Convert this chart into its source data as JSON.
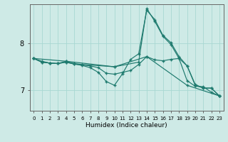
{
  "xlabel": "Humidex (Indice chaleur)",
  "bg_color": "#ceeae6",
  "line_color": "#1e7a6e",
  "grid_color": "#a8d8d2",
  "xlim": [
    -0.5,
    23.5
  ],
  "ylim": [
    6.55,
    8.85
  ],
  "xticks": [
    0,
    1,
    2,
    3,
    4,
    5,
    6,
    7,
    8,
    9,
    10,
    11,
    12,
    13,
    14,
    15,
    16,
    17,
    18,
    19,
    20,
    21,
    22,
    23
  ],
  "yticks": [
    7,
    8
  ],
  "lines": [
    {
      "x": [
        0,
        1,
        2,
        3,
        4,
        5,
        6,
        7,
        8,
        9,
        10,
        11,
        12,
        13,
        14,
        15,
        16,
        17,
        18,
        19,
        20,
        21,
        22,
        23
      ],
      "y": [
        7.68,
        7.6,
        7.58,
        7.57,
        7.6,
        7.56,
        7.54,
        7.52,
        7.48,
        7.36,
        7.34,
        7.38,
        7.42,
        7.55,
        7.72,
        7.65,
        7.63,
        7.66,
        7.68,
        7.2,
        7.08,
        7.07,
        6.95,
        6.87
      ]
    },
    {
      "x": [
        0,
        1,
        2,
        3,
        4,
        5,
        6,
        7,
        8,
        9,
        10,
        11,
        12,
        13,
        14,
        15,
        16,
        17,
        18,
        19,
        20,
        21,
        22,
        23
      ],
      "y": [
        7.68,
        7.6,
        7.58,
        7.57,
        7.6,
        7.56,
        7.53,
        7.48,
        7.38,
        7.18,
        7.1,
        7.35,
        7.66,
        7.78,
        8.72,
        8.52,
        8.18,
        8.02,
        7.72,
        7.52,
        7.12,
        7.04,
        7.04,
        6.87
      ]
    },
    {
      "x": [
        0,
        4,
        10,
        13,
        14,
        15,
        16,
        17,
        18,
        19,
        20,
        21,
        22,
        23
      ],
      "y": [
        7.68,
        7.62,
        7.5,
        7.6,
        8.76,
        8.48,
        8.16,
        7.98,
        7.68,
        7.52,
        7.1,
        7.04,
        7.04,
        6.87
      ]
    },
    {
      "x": [
        0,
        1,
        2,
        3,
        4,
        5,
        6,
        10,
        14,
        19,
        23
      ],
      "y": [
        7.68,
        7.62,
        7.58,
        7.57,
        7.62,
        7.57,
        7.55,
        7.5,
        7.72,
        7.1,
        6.87
      ]
    }
  ]
}
